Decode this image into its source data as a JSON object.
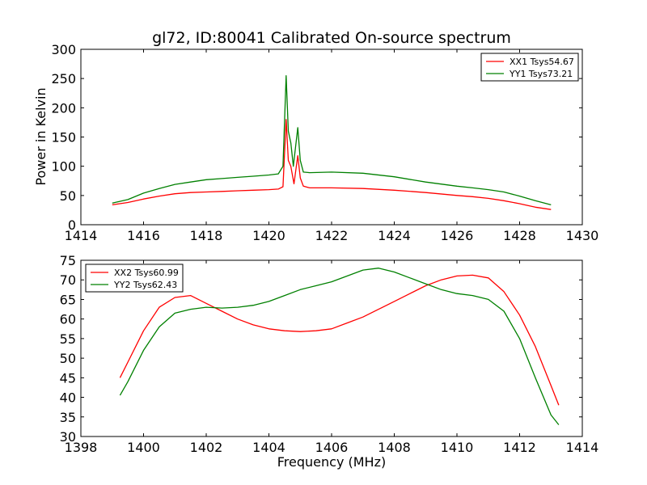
{
  "chart_data": [
    {
      "type": "line",
      "title": "gl72, ID:80041 Calibrated On-source spectrum",
      "xlabel": "",
      "ylabel": "Power in Kelvin",
      "xlim": [
        1414,
        1430
      ],
      "ylim": [
        0,
        300
      ],
      "xticks": [
        "1414",
        "1416",
        "1418",
        "1420",
        "1422",
        "1424",
        "1426",
        "1428",
        "1430"
      ],
      "yticks": [
        "0",
        "50",
        "100",
        "150",
        "200",
        "250",
        "300"
      ],
      "legend_position": "top-right",
      "series": [
        {
          "name": "XX1 Tsys54.67",
          "color": "#ff0000",
          "points": [
            [
              1415.0,
              34
            ],
            [
              1415.5,
              38
            ],
            [
              1416.0,
              44
            ],
            [
              1416.5,
              49
            ],
            [
              1417.0,
              53
            ],
            [
              1417.5,
              55
            ],
            [
              1418.0,
              56
            ],
            [
              1418.5,
              57
            ],
            [
              1419.0,
              58
            ],
            [
              1419.5,
              59
            ],
            [
              1420.0,
              60
            ],
            [
              1420.3,
              61
            ],
            [
              1420.45,
              65
            ],
            [
              1420.55,
              180
            ],
            [
              1420.62,
              110
            ],
            [
              1420.7,
              100
            ],
            [
              1420.8,
              70
            ],
            [
              1420.92,
              118
            ],
            [
              1421.0,
              80
            ],
            [
              1421.1,
              66
            ],
            [
              1421.3,
              63
            ],
            [
              1422.0,
              63
            ],
            [
              1423.0,
              62
            ],
            [
              1424.0,
              59
            ],
            [
              1425.0,
              55
            ],
            [
              1426.0,
              50
            ],
            [
              1426.5,
              48
            ],
            [
              1427.0,
              45
            ],
            [
              1427.5,
              41
            ],
            [
              1428.0,
              36
            ],
            [
              1428.5,
              30
            ],
            [
              1429.0,
              26
            ]
          ]
        },
        {
          "name": "YY1 Tsys73.21",
          "color": "#008000",
          "points": [
            [
              1415.0,
              37
            ],
            [
              1415.5,
              43
            ],
            [
              1416.0,
              54
            ],
            [
              1416.5,
              62
            ],
            [
              1417.0,
              69
            ],
            [
              1417.5,
              73
            ],
            [
              1418.0,
              77
            ],
            [
              1418.5,
              79
            ],
            [
              1419.0,
              81
            ],
            [
              1419.5,
              83
            ],
            [
              1420.0,
              85
            ],
            [
              1420.3,
              87
            ],
            [
              1420.45,
              100
            ],
            [
              1420.55,
              255
            ],
            [
              1420.62,
              160
            ],
            [
              1420.7,
              140
            ],
            [
              1420.78,
              100
            ],
            [
              1420.92,
              166
            ],
            [
              1421.0,
              110
            ],
            [
              1421.1,
              90
            ],
            [
              1421.3,
              89
            ],
            [
              1422.0,
              90
            ],
            [
              1423.0,
              88
            ],
            [
              1424.0,
              82
            ],
            [
              1425.0,
              73
            ],
            [
              1426.0,
              66
            ],
            [
              1426.5,
              63
            ],
            [
              1427.0,
              60
            ],
            [
              1427.5,
              56
            ],
            [
              1428.0,
              49
            ],
            [
              1428.5,
              41
            ],
            [
              1429.0,
              34
            ]
          ]
        }
      ]
    },
    {
      "type": "line",
      "title": "",
      "xlabel": "Frequency (MHz)",
      "ylabel": "",
      "xlim": [
        1398,
        1414
      ],
      "ylim": [
        30,
        75
      ],
      "xticks": [
        "1398",
        "1400",
        "1402",
        "1404",
        "1406",
        "1408",
        "1410",
        "1412",
        "1414"
      ],
      "yticks": [
        "30",
        "35",
        "40",
        "45",
        "50",
        "55",
        "60",
        "65",
        "70",
        "75"
      ],
      "legend_position": "top-left",
      "series": [
        {
          "name": "XX2 Tsys60.99",
          "color": "#ff0000",
          "points": [
            [
              1399.25,
              45
            ],
            [
              1399.5,
              49
            ],
            [
              1400.0,
              57
            ],
            [
              1400.5,
              63
            ],
            [
              1401.0,
              65.5
            ],
            [
              1401.5,
              66
            ],
            [
              1402.0,
              64
            ],
            [
              1402.5,
              62
            ],
            [
              1403.0,
              60
            ],
            [
              1403.5,
              58.5
            ],
            [
              1404.0,
              57.5
            ],
            [
              1404.5,
              57
            ],
            [
              1405.0,
              56.8
            ],
            [
              1405.5,
              57
            ],
            [
              1406.0,
              57.5
            ],
            [
              1406.5,
              59
            ],
            [
              1407.0,
              60.5
            ],
            [
              1407.5,
              62.5
            ],
            [
              1408.0,
              64.5
            ],
            [
              1408.5,
              66.5
            ],
            [
              1409.0,
              68.5
            ],
            [
              1409.5,
              70
            ],
            [
              1410.0,
              71
            ],
            [
              1410.5,
              71.2
            ],
            [
              1411.0,
              70.5
            ],
            [
              1411.5,
              67
            ],
            [
              1412.0,
              61
            ],
            [
              1412.5,
              53
            ],
            [
              1413.0,
              43
            ],
            [
              1413.25,
              38
            ]
          ]
        },
        {
          "name": "YY2 Tsys62.43",
          "color": "#008000",
          "points": [
            [
              1399.25,
              40.5
            ],
            [
              1399.5,
              44
            ],
            [
              1400.0,
              52
            ],
            [
              1400.5,
              58
            ],
            [
              1401.0,
              61.5
            ],
            [
              1401.5,
              62.5
            ],
            [
              1402.0,
              63
            ],
            [
              1402.5,
              62.8
            ],
            [
              1403.0,
              63
            ],
            [
              1403.5,
              63.5
            ],
            [
              1404.0,
              64.5
            ],
            [
              1404.5,
              66
            ],
            [
              1405.0,
              67.5
            ],
            [
              1405.5,
              68.5
            ],
            [
              1406.0,
              69.5
            ],
            [
              1406.5,
              71
            ],
            [
              1407.0,
              72.5
            ],
            [
              1407.5,
              73
            ],
            [
              1408.0,
              72
            ],
            [
              1408.5,
              70.5
            ],
            [
              1409.0,
              69
            ],
            [
              1409.5,
              67.5
            ],
            [
              1410.0,
              66.5
            ],
            [
              1410.5,
              66
            ],
            [
              1411.0,
              65
            ],
            [
              1411.5,
              62
            ],
            [
              1412.0,
              55
            ],
            [
              1412.5,
              45
            ],
            [
              1413.0,
              35.5
            ],
            [
              1413.25,
              33
            ]
          ]
        }
      ]
    }
  ]
}
